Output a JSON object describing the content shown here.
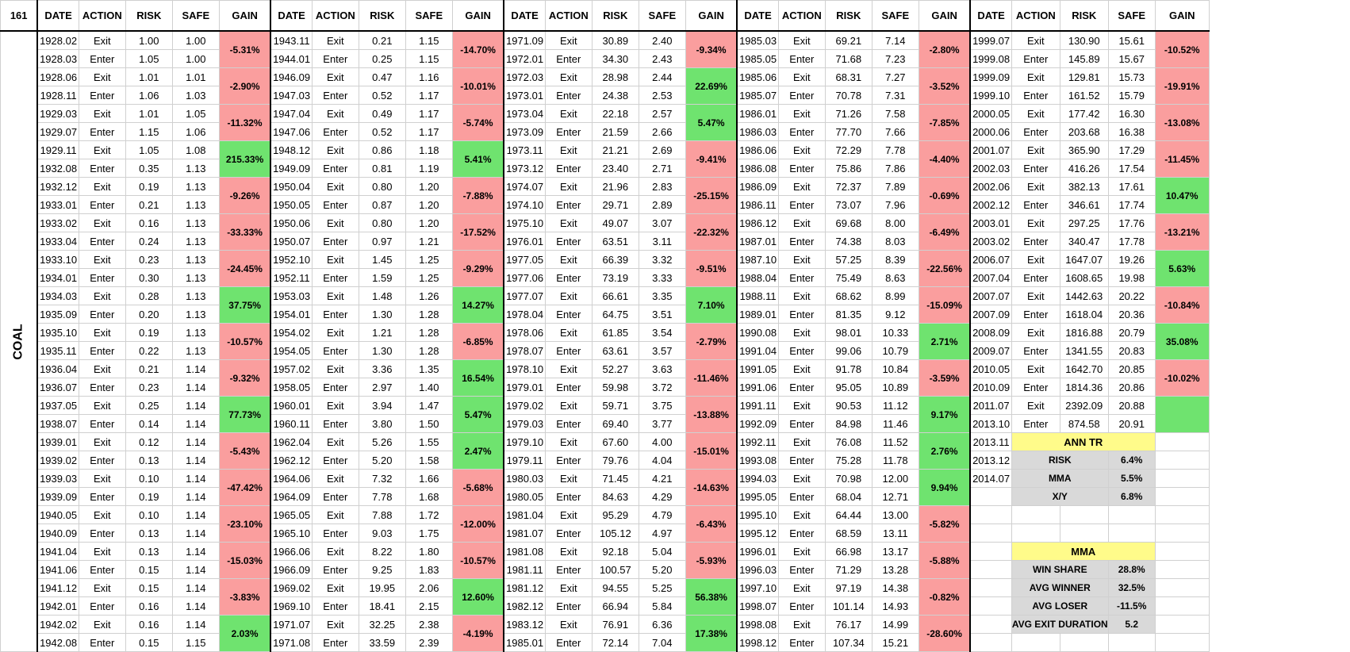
{
  "sheet": {
    "id_label": "161",
    "vertical_label": "COAL"
  },
  "headers": [
    "DATE",
    "ACTION",
    "RISK",
    "SAFE",
    "GAIN"
  ],
  "colors": {
    "negative_gain": "#fa9e9e",
    "positive_gain": "#6fe36f",
    "stat_header": "#fffb8a",
    "stat_body": "#d9d9d9"
  },
  "blocks": [
    {
      "rows": [
        [
          "1928.02",
          "Exit",
          "1.00",
          "1.00"
        ],
        [
          "1928.03",
          "Enter",
          "1.05",
          "1.00"
        ],
        [
          "1928.06",
          "Exit",
          "1.01",
          "1.01"
        ],
        [
          "1928.11",
          "Enter",
          "1.06",
          "1.03"
        ],
        [
          "1929.03",
          "Exit",
          "1.01",
          "1.05"
        ],
        [
          "1929.07",
          "Enter",
          "1.15",
          "1.06"
        ],
        [
          "1929.11",
          "Exit",
          "1.05",
          "1.08"
        ],
        [
          "1932.08",
          "Enter",
          "0.35",
          "1.13"
        ],
        [
          "1932.12",
          "Exit",
          "0.19",
          "1.13"
        ],
        [
          "1933.01",
          "Enter",
          "0.21",
          "1.13"
        ],
        [
          "1933.02",
          "Exit",
          "0.16",
          "1.13"
        ],
        [
          "1933.04",
          "Enter",
          "0.24",
          "1.13"
        ],
        [
          "1933.10",
          "Exit",
          "0.23",
          "1.13"
        ],
        [
          "1934.01",
          "Enter",
          "0.30",
          "1.13"
        ],
        [
          "1934.03",
          "Exit",
          "0.28",
          "1.13"
        ],
        [
          "1935.09",
          "Enter",
          "0.20",
          "1.13"
        ],
        [
          "1935.10",
          "Exit",
          "0.19",
          "1.13"
        ],
        [
          "1935.11",
          "Enter",
          "0.22",
          "1.13"
        ],
        [
          "1936.04",
          "Exit",
          "0.21",
          "1.14"
        ],
        [
          "1936.07",
          "Enter",
          "0.23",
          "1.14"
        ],
        [
          "1937.05",
          "Exit",
          "0.25",
          "1.14"
        ],
        [
          "1938.07",
          "Enter",
          "0.14",
          "1.14"
        ],
        [
          "1939.01",
          "Exit",
          "0.12",
          "1.14"
        ],
        [
          "1939.02",
          "Enter",
          "0.13",
          "1.14"
        ],
        [
          "1939.03",
          "Exit",
          "0.10",
          "1.14"
        ],
        [
          "1939.09",
          "Enter",
          "0.19",
          "1.14"
        ],
        [
          "1940.05",
          "Exit",
          "0.10",
          "1.14"
        ],
        [
          "1940.09",
          "Enter",
          "0.13",
          "1.14"
        ],
        [
          "1941.04",
          "Exit",
          "0.13",
          "1.14"
        ],
        [
          "1941.06",
          "Enter",
          "0.15",
          "1.14"
        ],
        [
          "1941.12",
          "Exit",
          "0.15",
          "1.14"
        ],
        [
          "1942.01",
          "Enter",
          "0.16",
          "1.14"
        ],
        [
          "1942.02",
          "Exit",
          "0.16",
          "1.14"
        ],
        [
          "1942.08",
          "Enter",
          "0.15",
          "1.15"
        ]
      ],
      "gains": [
        "-5.31%",
        "-2.90%",
        "-11.32%",
        "215.33%",
        "-9.26%",
        "-33.33%",
        "-24.45%",
        "37.75%",
        "-10.57%",
        "-9.32%",
        "77.73%",
        "-5.43%",
        "-47.42%",
        "-23.10%",
        "-15.03%",
        "-3.83%",
        "2.03%"
      ]
    },
    {
      "rows": [
        [
          "1943.11",
          "Exit",
          "0.21",
          "1.15"
        ],
        [
          "1944.01",
          "Enter",
          "0.25",
          "1.15"
        ],
        [
          "1946.09",
          "Exit",
          "0.47",
          "1.16"
        ],
        [
          "1947.03",
          "Enter",
          "0.52",
          "1.17"
        ],
        [
          "1947.04",
          "Exit",
          "0.49",
          "1.17"
        ],
        [
          "1947.06",
          "Enter",
          "0.52",
          "1.17"
        ],
        [
          "1948.12",
          "Exit",
          "0.86",
          "1.18"
        ],
        [
          "1949.09",
          "Enter",
          "0.81",
          "1.19"
        ],
        [
          "1950.04",
          "Exit",
          "0.80",
          "1.20"
        ],
        [
          "1950.05",
          "Enter",
          "0.87",
          "1.20"
        ],
        [
          "1950.06",
          "Exit",
          "0.80",
          "1.20"
        ],
        [
          "1950.07",
          "Enter",
          "0.97",
          "1.21"
        ],
        [
          "1952.10",
          "Exit",
          "1.45",
          "1.25"
        ],
        [
          "1952.11",
          "Enter",
          "1.59",
          "1.25"
        ],
        [
          "1953.03",
          "Exit",
          "1.48",
          "1.26"
        ],
        [
          "1954.01",
          "Enter",
          "1.30",
          "1.28"
        ],
        [
          "1954.02",
          "Exit",
          "1.21",
          "1.28"
        ],
        [
          "1954.05",
          "Enter",
          "1.30",
          "1.28"
        ],
        [
          "1957.02",
          "Exit",
          "3.36",
          "1.35"
        ],
        [
          "1958.05",
          "Enter",
          "2.97",
          "1.40"
        ],
        [
          "1960.01",
          "Exit",
          "3.94",
          "1.47"
        ],
        [
          "1960.11",
          "Enter",
          "3.80",
          "1.50"
        ],
        [
          "1962.04",
          "Exit",
          "5.26",
          "1.55"
        ],
        [
          "1962.12",
          "Enter",
          "5.20",
          "1.58"
        ],
        [
          "1964.06",
          "Exit",
          "7.32",
          "1.66"
        ],
        [
          "1964.09",
          "Enter",
          "7.78",
          "1.68"
        ],
        [
          "1965.05",
          "Exit",
          "7.88",
          "1.72"
        ],
        [
          "1965.10",
          "Enter",
          "9.03",
          "1.75"
        ],
        [
          "1966.06",
          "Exit",
          "8.22",
          "1.80"
        ],
        [
          "1966.09",
          "Enter",
          "9.25",
          "1.83"
        ],
        [
          "1969.02",
          "Exit",
          "19.95",
          "2.06"
        ],
        [
          "1969.10",
          "Enter",
          "18.41",
          "2.15"
        ],
        [
          "1971.07",
          "Exit",
          "32.25",
          "2.38"
        ],
        [
          "1971.08",
          "Enter",
          "33.59",
          "2.39"
        ]
      ],
      "gains": [
        "-14.70%",
        "-10.01%",
        "-5.74%",
        "5.41%",
        "-7.88%",
        "-17.52%",
        "-9.29%",
        "14.27%",
        "-6.85%",
        "16.54%",
        "5.47%",
        "2.47%",
        "-5.68%",
        "-12.00%",
        "-10.57%",
        "12.60%",
        "-4.19%"
      ]
    },
    {
      "rows": [
        [
          "1971.09",
          "Exit",
          "30.89",
          "2.40"
        ],
        [
          "1972.01",
          "Enter",
          "34.30",
          "2.43"
        ],
        [
          "1972.03",
          "Exit",
          "28.98",
          "2.44"
        ],
        [
          "1973.01",
          "Enter",
          "24.38",
          "2.53"
        ],
        [
          "1973.04",
          "Exit",
          "22.18",
          "2.57"
        ],
        [
          "1973.09",
          "Enter",
          "21.59",
          "2.66"
        ],
        [
          "1973.11",
          "Exit",
          "21.21",
          "2.69"
        ],
        [
          "1973.12",
          "Enter",
          "23.40",
          "2.71"
        ],
        [
          "1974.07",
          "Exit",
          "21.96",
          "2.83"
        ],
        [
          "1974.10",
          "Enter",
          "29.71",
          "2.89"
        ],
        [
          "1975.10",
          "Exit",
          "49.07",
          "3.07"
        ],
        [
          "1976.01",
          "Enter",
          "63.51",
          "3.11"
        ],
        [
          "1977.05",
          "Exit",
          "66.39",
          "3.32"
        ],
        [
          "1977.06",
          "Enter",
          "73.19",
          "3.33"
        ],
        [
          "1977.07",
          "Exit",
          "66.61",
          "3.35"
        ],
        [
          "1978.04",
          "Enter",
          "64.75",
          "3.51"
        ],
        [
          "1978.06",
          "Exit",
          "61.85",
          "3.54"
        ],
        [
          "1978.07",
          "Enter",
          "63.61",
          "3.57"
        ],
        [
          "1978.10",
          "Exit",
          "52.27",
          "3.63"
        ],
        [
          "1979.01",
          "Enter",
          "59.98",
          "3.72"
        ],
        [
          "1979.02",
          "Exit",
          "59.71",
          "3.75"
        ],
        [
          "1979.03",
          "Enter",
          "69.40",
          "3.77"
        ],
        [
          "1979.10",
          "Exit",
          "67.60",
          "4.00"
        ],
        [
          "1979.11",
          "Enter",
          "79.76",
          "4.04"
        ],
        [
          "1980.03",
          "Exit",
          "71.45",
          "4.21"
        ],
        [
          "1980.05",
          "Enter",
          "84.63",
          "4.29"
        ],
        [
          "1981.04",
          "Exit",
          "95.29",
          "4.79"
        ],
        [
          "1981.07",
          "Enter",
          "105.12",
          "4.97"
        ],
        [
          "1981.08",
          "Exit",
          "92.18",
          "5.04"
        ],
        [
          "1981.11",
          "Enter",
          "100.57",
          "5.20"
        ],
        [
          "1981.12",
          "Exit",
          "94.55",
          "5.25"
        ],
        [
          "1982.12",
          "Enter",
          "66.94",
          "5.84"
        ],
        [
          "1983.12",
          "Exit",
          "76.91",
          "6.36"
        ],
        [
          "1985.01",
          "Enter",
          "72.14",
          "7.04"
        ]
      ],
      "gains": [
        "-9.34%",
        "22.69%",
        "5.47%",
        "-9.41%",
        "-25.15%",
        "-22.32%",
        "-9.51%",
        "7.10%",
        "-2.79%",
        "-11.46%",
        "-13.88%",
        "-15.01%",
        "-14.63%",
        "-6.43%",
        "-5.93%",
        "56.38%",
        "17.38%"
      ]
    },
    {
      "rows": [
        [
          "1985.03",
          "Exit",
          "69.21",
          "7.14"
        ],
        [
          "1985.05",
          "Enter",
          "71.68",
          "7.23"
        ],
        [
          "1985.06",
          "Exit",
          "68.31",
          "7.27"
        ],
        [
          "1985.07",
          "Enter",
          "70.78",
          "7.31"
        ],
        [
          "1986.01",
          "Exit",
          "71.26",
          "7.58"
        ],
        [
          "1986.03",
          "Enter",
          "77.70",
          "7.66"
        ],
        [
          "1986.06",
          "Exit",
          "72.29",
          "7.78"
        ],
        [
          "1986.08",
          "Enter",
          "75.86",
          "7.86"
        ],
        [
          "1986.09",
          "Exit",
          "72.37",
          "7.89"
        ],
        [
          "1986.11",
          "Enter",
          "73.07",
          "7.96"
        ],
        [
          "1986.12",
          "Exit",
          "69.68",
          "8.00"
        ],
        [
          "1987.01",
          "Enter",
          "74.38",
          "8.03"
        ],
        [
          "1987.10",
          "Exit",
          "57.25",
          "8.39"
        ],
        [
          "1988.04",
          "Enter",
          "75.49",
          "8.63"
        ],
        [
          "1988.11",
          "Exit",
          "68.62",
          "8.99"
        ],
        [
          "1989.01",
          "Enter",
          "81.35",
          "9.12"
        ],
        [
          "1990.08",
          "Exit",
          "98.01",
          "10.33"
        ],
        [
          "1991.04",
          "Enter",
          "99.06",
          "10.79"
        ],
        [
          "1991.05",
          "Exit",
          "91.78",
          "10.84"
        ],
        [
          "1991.06",
          "Enter",
          "95.05",
          "10.89"
        ],
        [
          "1991.11",
          "Exit",
          "90.53",
          "11.12"
        ],
        [
          "1992.09",
          "Enter",
          "84.98",
          "11.46"
        ],
        [
          "1992.11",
          "Exit",
          "76.08",
          "11.52"
        ],
        [
          "1993.08",
          "Enter",
          "75.28",
          "11.78"
        ],
        [
          "1994.03",
          "Exit",
          "70.98",
          "12.00"
        ],
        [
          "1995.05",
          "Enter",
          "68.04",
          "12.71"
        ],
        [
          "1995.10",
          "Exit",
          "64.44",
          "13.00"
        ],
        [
          "1995.12",
          "Enter",
          "68.59",
          "13.11"
        ],
        [
          "1996.01",
          "Exit",
          "66.98",
          "13.17"
        ],
        [
          "1996.03",
          "Enter",
          "71.29",
          "13.28"
        ],
        [
          "1997.10",
          "Exit",
          "97.19",
          "14.38"
        ],
        [
          "1998.07",
          "Enter",
          "101.14",
          "14.93"
        ],
        [
          "1998.08",
          "Exit",
          "76.17",
          "14.99"
        ],
        [
          "1998.12",
          "Enter",
          "107.34",
          "15.21"
        ]
      ],
      "gains": [
        "-2.80%",
        "-3.52%",
        "-7.85%",
        "-4.40%",
        "-0.69%",
        "-6.49%",
        "-22.56%",
        "-15.09%",
        "2.71%",
        "-3.59%",
        "9.17%",
        "2.76%",
        "9.94%",
        "-5.82%",
        "-5.88%",
        "-0.82%",
        "-28.60%"
      ]
    },
    {
      "rows": [
        [
          "1999.07",
          "Exit",
          "130.90",
          "15.61"
        ],
        [
          "1999.08",
          "Enter",
          "145.89",
          "15.67"
        ],
        [
          "1999.09",
          "Exit",
          "129.81",
          "15.73"
        ],
        [
          "1999.10",
          "Enter",
          "161.52",
          "15.79"
        ],
        [
          "2000.05",
          "Exit",
          "177.42",
          "16.30"
        ],
        [
          "2000.06",
          "Enter",
          "203.68",
          "16.38"
        ],
        [
          "2001.07",
          "Exit",
          "365.90",
          "17.29"
        ],
        [
          "2002.03",
          "Enter",
          "416.26",
          "17.54"
        ],
        [
          "2002.06",
          "Exit",
          "382.13",
          "17.61"
        ],
        [
          "2002.12",
          "Enter",
          "346.61",
          "17.74"
        ],
        [
          "2003.01",
          "Exit",
          "297.25",
          "17.76"
        ],
        [
          "2003.02",
          "Enter",
          "340.47",
          "17.78"
        ],
        [
          "2006.07",
          "Exit",
          "1647.07",
          "19.26"
        ],
        [
          "2007.04",
          "Enter",
          "1608.65",
          "19.98"
        ],
        [
          "2007.07",
          "Exit",
          "1442.63",
          "20.22"
        ],
        [
          "2007.09",
          "Enter",
          "1618.04",
          "20.36"
        ],
        [
          "2008.09",
          "Exit",
          "1816.88",
          "20.79"
        ],
        [
          "2009.07",
          "Enter",
          "1341.55",
          "20.83"
        ],
        [
          "2010.05",
          "Exit",
          "1642.70",
          "20.85"
        ],
        [
          "2010.09",
          "Enter",
          "1814.36",
          "20.86"
        ],
        [
          "2011.07",
          "Exit",
          "2392.09",
          "20.88"
        ],
        [
          "2013.10",
          "Enter",
          "874.58",
          "20.91"
        ]
      ],
      "gains": [
        "-10.52%",
        "-19.91%",
        "-13.08%",
        "-11.45%",
        "10.47%",
        "-13.21%",
        "5.63%",
        "-10.84%",
        "35.08%",
        "-10.02%"
      ],
      "extra_dates": [
        "2013.11",
        "2013.12",
        "2014.07"
      ]
    }
  ],
  "ann_tr": {
    "title": "ANN TR",
    "rows": [
      [
        "RISK",
        "6.4%"
      ],
      [
        "MMA",
        "5.5%"
      ],
      [
        "X/Y",
        "6.8%"
      ]
    ]
  },
  "mma": {
    "title": "MMA",
    "rows": [
      [
        "WIN SHARE",
        "28.8%"
      ],
      [
        "AVG WINNER",
        "32.5%"
      ],
      [
        "AVG LOSER",
        "-11.5%"
      ],
      [
        "AVG EXIT DURATION",
        "5.2"
      ]
    ]
  }
}
